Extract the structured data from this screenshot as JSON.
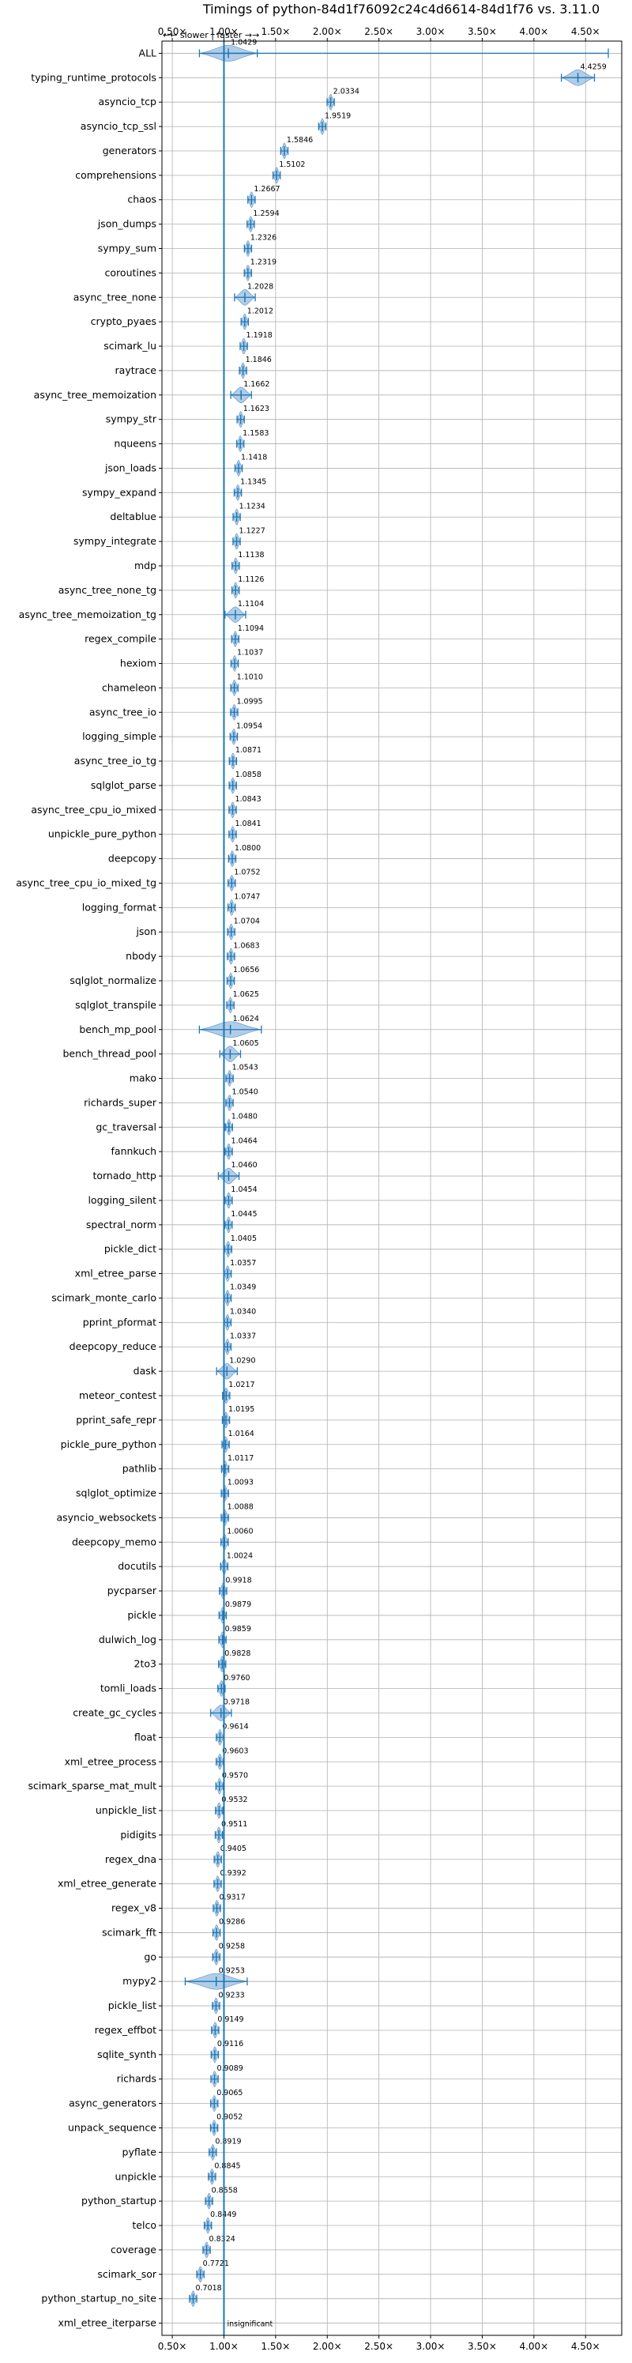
{
  "chart_data": {
    "type": "violin",
    "title": "Timings of python-84d1f76092c24c4d6614-84d1f76 vs. 3.11.0",
    "direction_hint": "←← slower | faster →→",
    "x_ticks": [
      "0.50×",
      "1.00×",
      "1.50×",
      "2.00×",
      "2.50×",
      "3.00×",
      "3.50×",
      "4.00×",
      "4.50×"
    ],
    "x_tick_values": [
      0.5,
      1.0,
      1.5,
      2.0,
      2.5,
      3.0,
      3.5,
      4.0,
      4.5
    ],
    "xlim": [
      0.4,
      4.85
    ],
    "grid": true,
    "reference_line": 1.0,
    "benchmarks": [
      {
        "name": "ALL",
        "value": 1.0429,
        "label": "1.0429"
      },
      {
        "name": "typing_runtime_protocols",
        "value": 4.4259,
        "label": "4.4259"
      },
      {
        "name": "asyncio_tcp",
        "value": 2.0334,
        "label": "2.0334"
      },
      {
        "name": "asyncio_tcp_ssl",
        "value": 1.9519,
        "label": "1.9519"
      },
      {
        "name": "generators",
        "value": 1.5846,
        "label": "1.5846"
      },
      {
        "name": "comprehensions",
        "value": 1.5102,
        "label": "1.5102"
      },
      {
        "name": "chaos",
        "value": 1.2667,
        "label": "1.2667"
      },
      {
        "name": "json_dumps",
        "value": 1.2594,
        "label": "1.2594"
      },
      {
        "name": "sympy_sum",
        "value": 1.2326,
        "label": "1.2326"
      },
      {
        "name": "coroutines",
        "value": 1.2319,
        "label": "1.2319"
      },
      {
        "name": "async_tree_none",
        "value": 1.2028,
        "label": "1.2028"
      },
      {
        "name": "crypto_pyaes",
        "value": 1.2012,
        "label": "1.2012"
      },
      {
        "name": "scimark_lu",
        "value": 1.1918,
        "label": "1.1918"
      },
      {
        "name": "raytrace",
        "value": 1.1846,
        "label": "1.1846"
      },
      {
        "name": "async_tree_memoization",
        "value": 1.1662,
        "label": "1.1662"
      },
      {
        "name": "sympy_str",
        "value": 1.1623,
        "label": "1.1623"
      },
      {
        "name": "nqueens",
        "value": 1.1583,
        "label": "1.1583"
      },
      {
        "name": "json_loads",
        "value": 1.1418,
        "label": "1.1418"
      },
      {
        "name": "sympy_expand",
        "value": 1.1345,
        "label": "1.1345"
      },
      {
        "name": "deltablue",
        "value": 1.1234,
        "label": "1.1234"
      },
      {
        "name": "sympy_integrate",
        "value": 1.1227,
        "label": "1.1227"
      },
      {
        "name": "mdp",
        "value": 1.1138,
        "label": "1.1138"
      },
      {
        "name": "async_tree_none_tg",
        "value": 1.1126,
        "label": "1.1126"
      },
      {
        "name": "async_tree_memoization_tg",
        "value": 1.1104,
        "label": "1.1104"
      },
      {
        "name": "regex_compile",
        "value": 1.1094,
        "label": "1.1094"
      },
      {
        "name": "hexiom",
        "value": 1.1037,
        "label": "1.1037"
      },
      {
        "name": "chameleon",
        "value": 1.101,
        "label": "1.1010"
      },
      {
        "name": "async_tree_io",
        "value": 1.0995,
        "label": "1.0995"
      },
      {
        "name": "logging_simple",
        "value": 1.0954,
        "label": "1.0954"
      },
      {
        "name": "async_tree_io_tg",
        "value": 1.0871,
        "label": "1.0871"
      },
      {
        "name": "sqlglot_parse",
        "value": 1.0858,
        "label": "1.0858"
      },
      {
        "name": "async_tree_cpu_io_mixed",
        "value": 1.0843,
        "label": "1.0843"
      },
      {
        "name": "unpickle_pure_python",
        "value": 1.0841,
        "label": "1.0841"
      },
      {
        "name": "deepcopy",
        "value": 1.08,
        "label": "1.0800"
      },
      {
        "name": "async_tree_cpu_io_mixed_tg",
        "value": 1.0752,
        "label": "1.0752"
      },
      {
        "name": "logging_format",
        "value": 1.0747,
        "label": "1.0747"
      },
      {
        "name": "json",
        "value": 1.0704,
        "label": "1.0704"
      },
      {
        "name": "nbody",
        "value": 1.0683,
        "label": "1.0683"
      },
      {
        "name": "sqlglot_normalize",
        "value": 1.0656,
        "label": "1.0656"
      },
      {
        "name": "sqlglot_transpile",
        "value": 1.0625,
        "label": "1.0625"
      },
      {
        "name": "bench_mp_pool",
        "value": 1.0624,
        "label": "1.0624"
      },
      {
        "name": "bench_thread_pool",
        "value": 1.0605,
        "label": "1.0605"
      },
      {
        "name": "mako",
        "value": 1.0543,
        "label": "1.0543"
      },
      {
        "name": "richards_super",
        "value": 1.054,
        "label": "1.0540"
      },
      {
        "name": "gc_traversal",
        "value": 1.048,
        "label": "1.0480"
      },
      {
        "name": "fannkuch",
        "value": 1.0464,
        "label": "1.0464"
      },
      {
        "name": "tornado_http",
        "value": 1.046,
        "label": "1.0460"
      },
      {
        "name": "logging_silent",
        "value": 1.0454,
        "label": "1.0454"
      },
      {
        "name": "spectral_norm",
        "value": 1.0445,
        "label": "1.0445"
      },
      {
        "name": "pickle_dict",
        "value": 1.0405,
        "label": "1.0405"
      },
      {
        "name": "xml_etree_parse",
        "value": 1.0357,
        "label": "1.0357"
      },
      {
        "name": "scimark_monte_carlo",
        "value": 1.0349,
        "label": "1.0349"
      },
      {
        "name": "pprint_pformat",
        "value": 1.034,
        "label": "1.0340"
      },
      {
        "name": "deepcopy_reduce",
        "value": 1.0337,
        "label": "1.0337"
      },
      {
        "name": "dask",
        "value": 1.029,
        "label": "1.0290"
      },
      {
        "name": "meteor_contest",
        "value": 1.0217,
        "label": "1.0217"
      },
      {
        "name": "pprint_safe_repr",
        "value": 1.0195,
        "label": "1.0195"
      },
      {
        "name": "pickle_pure_python",
        "value": 1.0164,
        "label": "1.0164"
      },
      {
        "name": "pathlib",
        "value": 1.0117,
        "label": "1.0117"
      },
      {
        "name": "sqlglot_optimize",
        "value": 1.0093,
        "label": "1.0093"
      },
      {
        "name": "asyncio_websockets",
        "value": 1.0088,
        "label": "1.0088"
      },
      {
        "name": "deepcopy_memo",
        "value": 1.006,
        "label": "1.0060"
      },
      {
        "name": "docutils",
        "value": 1.0024,
        "label": "1.0024"
      },
      {
        "name": "pycparser",
        "value": 0.9918,
        "label": "0.9918"
      },
      {
        "name": "pickle",
        "value": 0.9879,
        "label": "0.9879"
      },
      {
        "name": "dulwich_log",
        "value": 0.9859,
        "label": "0.9859"
      },
      {
        "name": "2to3",
        "value": 0.9828,
        "label": "0.9828"
      },
      {
        "name": "tomli_loads",
        "value": 0.976,
        "label": "0.9760"
      },
      {
        "name": "create_gc_cycles",
        "value": 0.9718,
        "label": "0.9718"
      },
      {
        "name": "float",
        "value": 0.9614,
        "label": "0.9614"
      },
      {
        "name": "xml_etree_process",
        "value": 0.9603,
        "label": "0.9603"
      },
      {
        "name": "scimark_sparse_mat_mult",
        "value": 0.957,
        "label": "0.9570"
      },
      {
        "name": "unpickle_list",
        "value": 0.9532,
        "label": "0.9532"
      },
      {
        "name": "pidigits",
        "value": 0.9511,
        "label": "0.9511"
      },
      {
        "name": "regex_dna",
        "value": 0.9405,
        "label": "0.9405"
      },
      {
        "name": "xml_etree_generate",
        "value": 0.9392,
        "label": "0.9392"
      },
      {
        "name": "regex_v8",
        "value": 0.9317,
        "label": "0.9317"
      },
      {
        "name": "scimark_fft",
        "value": 0.9286,
        "label": "0.9286"
      },
      {
        "name": "go",
        "value": 0.9258,
        "label": "0.9258"
      },
      {
        "name": "mypy2",
        "value": 0.9253,
        "label": "0.9253"
      },
      {
        "name": "pickle_list",
        "value": 0.9233,
        "label": "0.9233"
      },
      {
        "name": "regex_effbot",
        "value": 0.9149,
        "label": "0.9149"
      },
      {
        "name": "sqlite_synth",
        "value": 0.9116,
        "label": "0.9116"
      },
      {
        "name": "richards",
        "value": 0.9089,
        "label": "0.9089"
      },
      {
        "name": "async_generators",
        "value": 0.9065,
        "label": "0.9065"
      },
      {
        "name": "unpack_sequence",
        "value": 0.9052,
        "label": "0.9052"
      },
      {
        "name": "pyflate",
        "value": 0.8919,
        "label": "0.8919"
      },
      {
        "name": "unpickle",
        "value": 0.8845,
        "label": "0.8845"
      },
      {
        "name": "python_startup",
        "value": 0.8558,
        "label": "0.8558"
      },
      {
        "name": "telco",
        "value": 0.8449,
        "label": "0.8449"
      },
      {
        "name": "coverage",
        "value": 0.8324,
        "label": "0.8324"
      },
      {
        "name": "scimark_sor",
        "value": 0.7721,
        "label": "0.7721"
      },
      {
        "name": "python_startup_no_site",
        "value": 0.7018,
        "label": "0.7018"
      },
      {
        "name": "xml_etree_iterparse",
        "value": null,
        "label": "insignificant"
      }
    ]
  }
}
